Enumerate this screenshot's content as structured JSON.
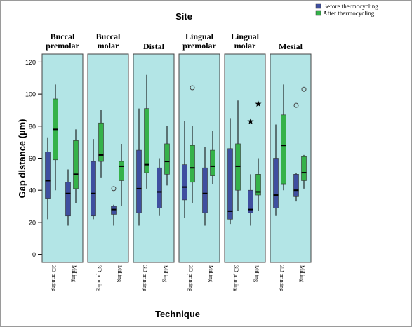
{
  "chart_data": {
    "type": "boxplot",
    "title": "Site",
    "xlabel": "Technique",
    "ylabel": "Gap distance (µm)",
    "ylim": [
      -5,
      125
    ],
    "yticks": [
      0,
      20,
      40,
      60,
      80,
      100,
      120
    ],
    "grid": false,
    "legend_position": "top-right",
    "categories": [
      "3D printing",
      "Milling"
    ],
    "series": [
      {
        "name": "Before thermocycling",
        "color": "#3f4fa0"
      },
      {
        "name": "After thermocycling",
        "color": "#35b24a"
      }
    ],
    "panels": [
      {
        "site": "Buccal premolar",
        "site_lines": [
          "Buccal",
          "premolar"
        ],
        "boxes": [
          {
            "technique": "3D printing",
            "series": "Before thermocycling",
            "min": 22,
            "q1": 35,
            "median": 46,
            "q3": 64,
            "max": 73,
            "outliers": []
          },
          {
            "technique": "3D printing",
            "series": "After thermocycling",
            "min": 40,
            "q1": 59,
            "median": 78,
            "q3": 97,
            "max": 106,
            "outliers": []
          },
          {
            "technique": "Milling",
            "series": "Before thermocycling",
            "min": 18,
            "q1": 24,
            "median": 38,
            "q3": 45,
            "max": 53,
            "outliers": []
          },
          {
            "technique": "Milling",
            "series": "After thermocycling",
            "min": 32,
            "q1": 41,
            "median": 50,
            "q3": 71,
            "max": 78,
            "outliers": []
          }
        ]
      },
      {
        "site": "Buccal molar",
        "site_lines": [
          "Buccal",
          "molar"
        ],
        "boxes": [
          {
            "technique": "3D printing",
            "series": "Before thermocycling",
            "min": 22,
            "q1": 24,
            "median": 38,
            "q3": 58,
            "max": 72,
            "outliers": []
          },
          {
            "technique": "3D printing",
            "series": "After thermocycling",
            "min": 48,
            "q1": 58,
            "median": 62,
            "q3": 82,
            "max": 90,
            "outliers": []
          },
          {
            "technique": "Milling",
            "series": "Before thermocycling",
            "min": 18,
            "q1": 25,
            "median": 28,
            "q3": 30,
            "max": 31,
            "outliers": [
              {
                "value": 41,
                "symbol": "circle"
              }
            ]
          },
          {
            "technique": "Milling",
            "series": "After thermocycling",
            "min": 30,
            "q1": 46,
            "median": 55,
            "q3": 58,
            "max": 69,
            "outliers": []
          }
        ]
      },
      {
        "site": "Distal",
        "site_lines": [
          "Distal"
        ],
        "boxes": [
          {
            "technique": "3D printing",
            "series": "Before thermocycling",
            "min": 18,
            "q1": 26,
            "median": 41,
            "q3": 65,
            "max": 91,
            "outliers": []
          },
          {
            "technique": "3D printing",
            "series": "After thermocycling",
            "min": 41,
            "q1": 51,
            "median": 56,
            "q3": 91,
            "max": 112,
            "outliers": []
          },
          {
            "technique": "Milling",
            "series": "Before thermocycling",
            "min": 24,
            "q1": 29,
            "median": 39,
            "q3": 54,
            "max": 60,
            "outliers": []
          },
          {
            "technique": "Milling",
            "series": "After thermocycling",
            "min": 43,
            "q1": 50,
            "median": 58,
            "q3": 69,
            "max": 80,
            "outliers": []
          }
        ]
      },
      {
        "site": "Lingual premolar",
        "site_lines": [
          "Lingual",
          "premolar"
        ],
        "boxes": [
          {
            "technique": "3D printing",
            "series": "Before thermocycling",
            "min": 23,
            "q1": 34,
            "median": 42,
            "q3": 56,
            "max": 83,
            "outliers": []
          },
          {
            "technique": "3D printing",
            "series": "After thermocycling",
            "min": 32,
            "q1": 45,
            "median": 54,
            "q3": 68,
            "max": 80,
            "outliers": [
              {
                "value": 104,
                "symbol": "circle"
              }
            ]
          },
          {
            "technique": "Milling",
            "series": "Before thermocycling",
            "min": 18,
            "q1": 26,
            "median": 38,
            "q3": 54,
            "max": 67,
            "outliers": []
          },
          {
            "technique": "Milling",
            "series": "After thermocycling",
            "min": 44,
            "q1": 49,
            "median": 55,
            "q3": 65,
            "max": 77,
            "outliers": []
          }
        ]
      },
      {
        "site": "Lingual molar",
        "site_lines": [
          "Lingual",
          "molar"
        ],
        "boxes": [
          {
            "technique": "3D printing",
            "series": "Before thermocycling",
            "min": 19,
            "q1": 22,
            "median": 27,
            "q3": 66,
            "max": 85,
            "outliers": []
          },
          {
            "technique": "3D printing",
            "series": "After thermocycling",
            "min": 27,
            "q1": 40,
            "median": 55,
            "q3": 69,
            "max": 96,
            "outliers": []
          },
          {
            "technique": "Milling",
            "series": "Before thermocycling",
            "min": 18,
            "q1": 26,
            "median": 28,
            "q3": 40,
            "max": 50,
            "outliers": [
              {
                "value": 83,
                "symbol": "star"
              }
            ]
          },
          {
            "technique": "Milling",
            "series": "After thermocycling",
            "min": 27,
            "q1": 37,
            "median": 39,
            "q3": 50,
            "max": 60,
            "outliers": [
              {
                "value": 94,
                "symbol": "star"
              }
            ]
          }
        ]
      },
      {
        "site": "Mesial",
        "site_lines": [
          "Mesial"
        ],
        "boxes": [
          {
            "technique": "3D printing",
            "series": "Before thermocycling",
            "min": 24,
            "q1": 29,
            "median": 37,
            "q3": 60,
            "max": 81,
            "outliers": []
          },
          {
            "technique": "3D printing",
            "series": "After thermocycling",
            "min": 40,
            "q1": 44,
            "median": 68,
            "q3": 87,
            "max": 106,
            "outliers": []
          },
          {
            "technique": "Milling",
            "series": "Before thermocycling",
            "min": 33,
            "q1": 36,
            "median": 40,
            "q3": 50,
            "max": 51,
            "outliers": [
              {
                "value": 93,
                "symbol": "circle"
              }
            ]
          },
          {
            "technique": "Milling",
            "series": "After thermocycling",
            "min": 41,
            "q1": 46,
            "median": 51,
            "q3": 61,
            "max": 62,
            "outliers": [
              {
                "value": 103,
                "symbol": "circle"
              }
            ]
          }
        ]
      }
    ]
  },
  "colors": {
    "panel_background": "#b3e5e6",
    "frame": "#9a9a9a"
  }
}
